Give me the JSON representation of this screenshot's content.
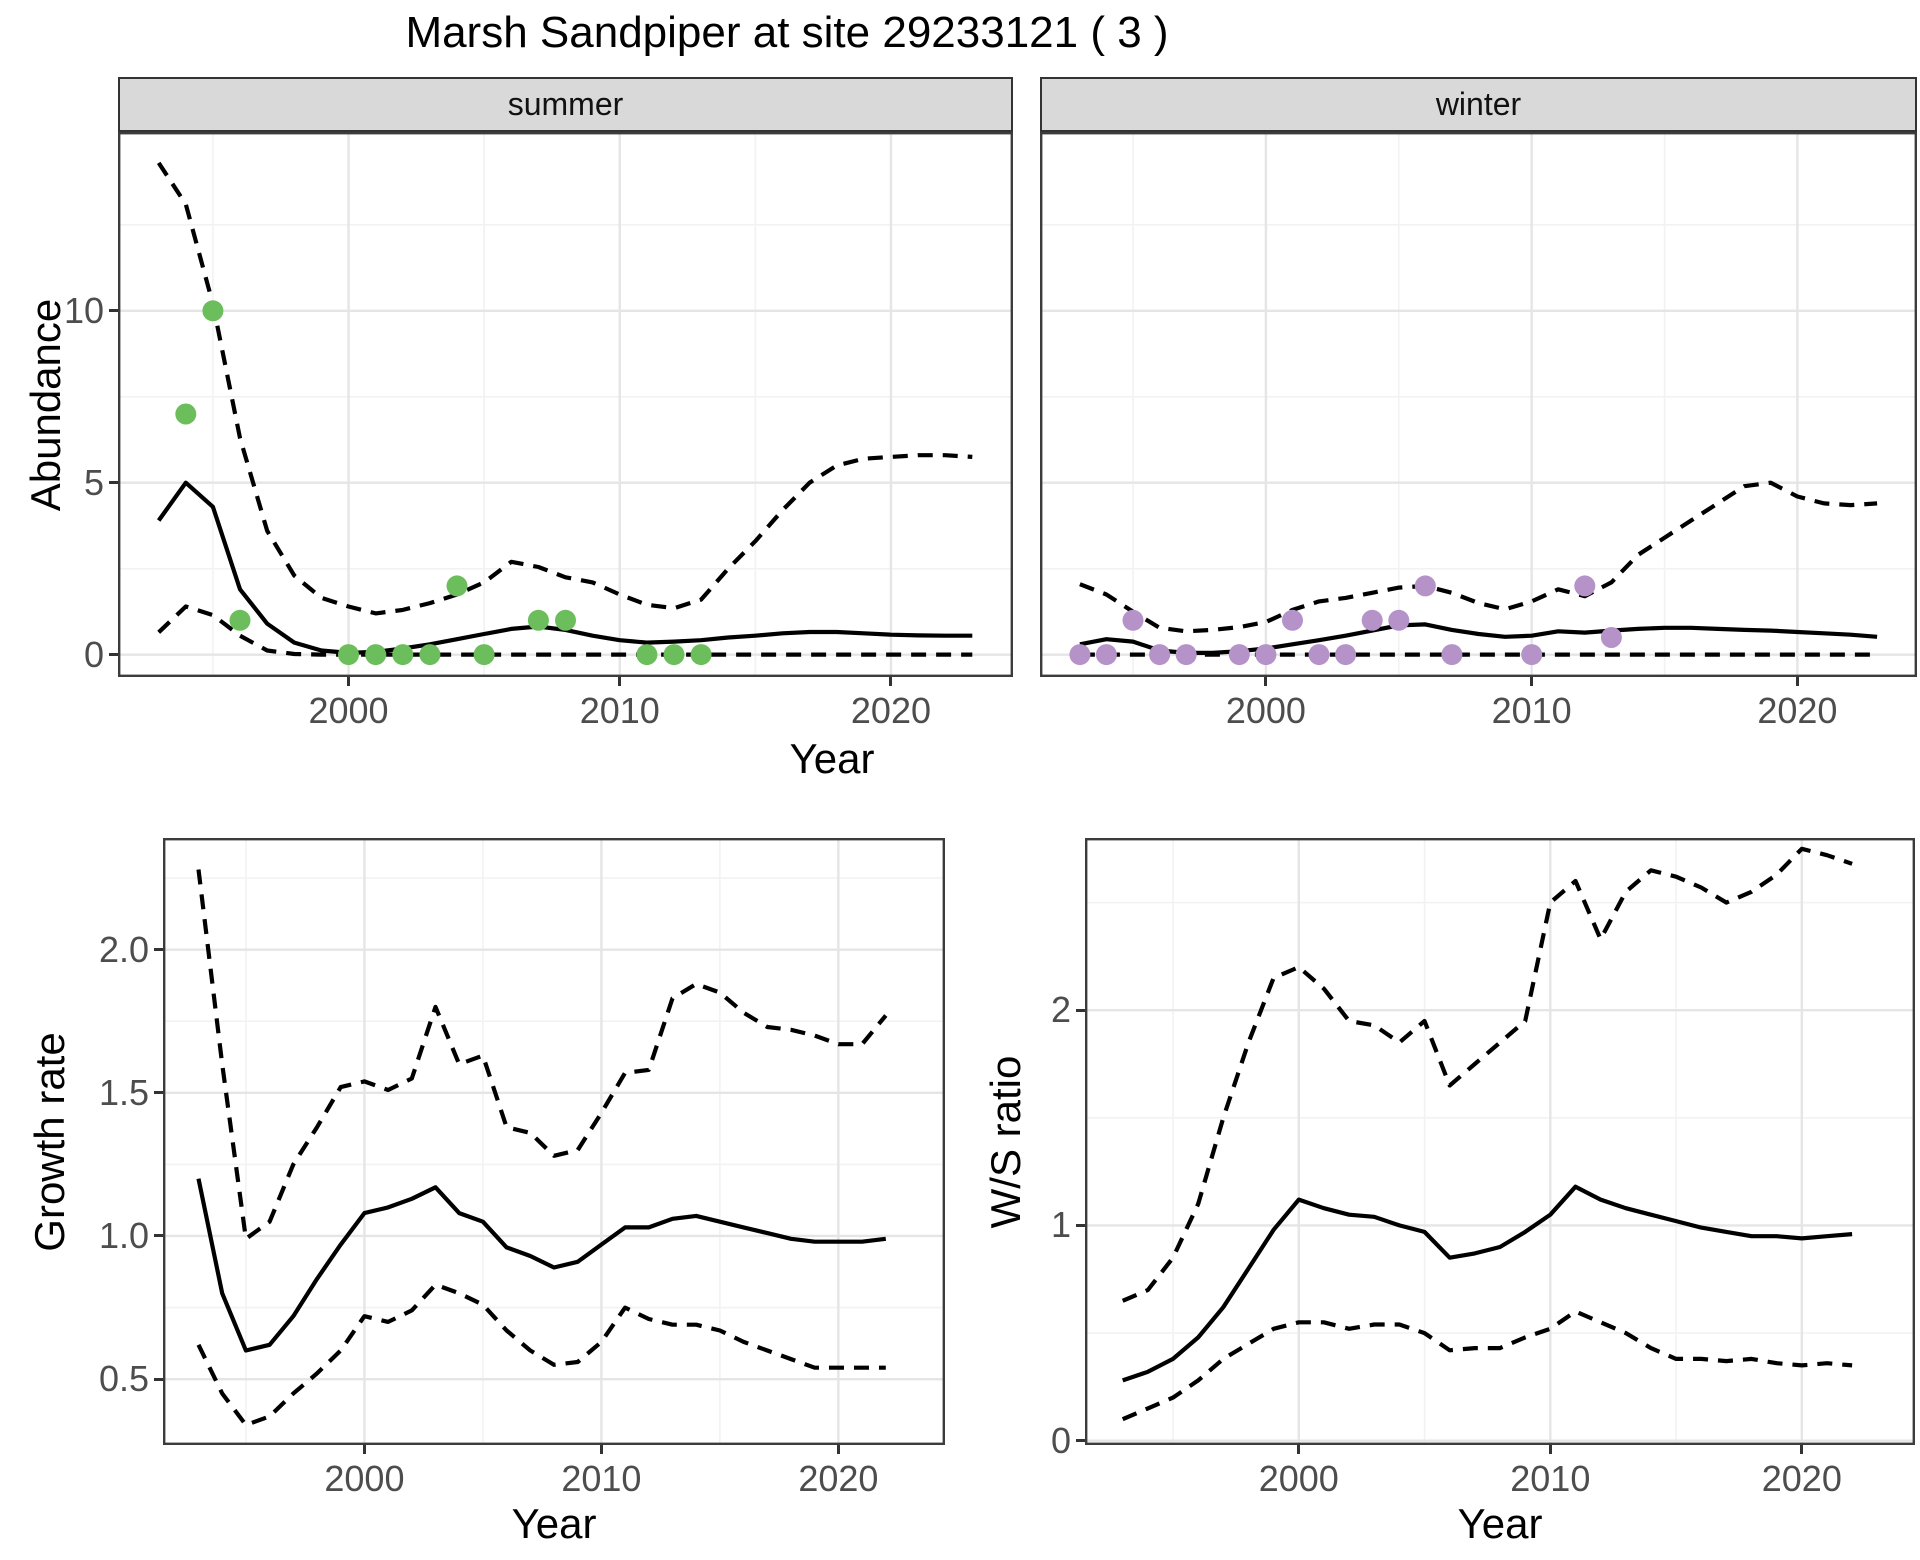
{
  "title": "Marsh Sandpiper at site 29233121 ( 3 )",
  "facets": {
    "summer": "summer",
    "winter": "winter"
  },
  "axes": {
    "abundance_label": "Abundance",
    "year_top_label": "Year",
    "growth_label": "Growth rate",
    "year_growth_label": "Year",
    "ws_label": "W/S ratio",
    "year_ws_label": "Year"
  },
  "colors": {
    "summer_points": "#6CBE5C",
    "winter_points": "#B592C8",
    "line": "#000000",
    "grid_major": "#e5e5e5",
    "grid_minor": "#f2f2f2",
    "panel_border": "#3c3c3c",
    "strip_bg": "#d9d9d9",
    "tick_text": "#4d4d4d"
  },
  "chart_data": [
    {
      "id": "abundance-summer",
      "type": "line",
      "title": "summer",
      "xlabel": "Year",
      "ylabel": "Abundance",
      "xlim": [
        1991.5,
        2024.5
      ],
      "ylim": [
        -0.65,
        15.2
      ],
      "xticks": [
        2000,
        2010,
        2020
      ],
      "xminor": [
        1995,
        2005,
        2015
      ],
      "yticks": [
        {
          "v": 0,
          "label": "0"
        },
        {
          "v": 5,
          "label": "5"
        },
        {
          "v": 10,
          "label": "10"
        }
      ],
      "yminor": [
        2.5,
        7.5,
        12.5
      ],
      "x": [
        1993,
        1994,
        1995,
        1996,
        1997,
        1998,
        1999,
        2000,
        2001,
        2002,
        2003,
        2004,
        2005,
        2006,
        2007,
        2008,
        2009,
        2010,
        2011,
        2012,
        2013,
        2014,
        2015,
        2016,
        2017,
        2018,
        2019,
        2020,
        2021,
        2022,
        2023
      ],
      "series": [
        {
          "name": "fit",
          "style": "solid",
          "values": [
            3.9,
            5.0,
            4.3,
            1.9,
            0.9,
            0.35,
            0.12,
            0.05,
            0.08,
            0.18,
            0.3,
            0.45,
            0.6,
            0.75,
            0.82,
            0.72,
            0.55,
            0.42,
            0.35,
            0.38,
            0.42,
            0.5,
            0.55,
            0.62,
            0.66,
            0.66,
            0.62,
            0.58,
            0.56,
            0.55,
            0.55
          ]
        },
        {
          "name": "upper_ci",
          "style": "dashed",
          "values": [
            14.3,
            13.1,
            10.2,
            6.3,
            3.6,
            2.3,
            1.65,
            1.4,
            1.2,
            1.3,
            1.5,
            1.75,
            2.1,
            2.7,
            2.55,
            2.25,
            2.1,
            1.75,
            1.45,
            1.35,
            1.6,
            2.5,
            3.3,
            4.2,
            5.0,
            5.5,
            5.7,
            5.75,
            5.8,
            5.8,
            5.75
          ]
        },
        {
          "name": "lower_ci",
          "style": "dashed",
          "values": [
            0.65,
            1.4,
            1.15,
            0.55,
            0.12,
            0.02,
            0,
            0,
            0,
            0,
            0,
            0,
            0,
            0,
            0,
            0,
            0,
            0,
            0,
            0,
            0,
            0,
            0,
            0,
            0,
            0,
            0,
            0,
            0,
            0,
            0
          ]
        }
      ],
      "points": {
        "name": "observed-counts-summer",
        "color": "#6CBE5C",
        "data": [
          [
            1994,
            7
          ],
          [
            1995,
            10
          ],
          [
            1996,
            1
          ],
          [
            2000,
            0
          ],
          [
            2001,
            0
          ],
          [
            2002,
            0
          ],
          [
            2003,
            0
          ],
          [
            2004,
            2
          ],
          [
            2005,
            0
          ],
          [
            2007,
            1
          ],
          [
            2008,
            1
          ],
          [
            2011,
            0
          ],
          [
            2012,
            0
          ],
          [
            2013,
            0
          ]
        ]
      }
    },
    {
      "id": "abundance-winter",
      "type": "line",
      "title": "winter",
      "xlabel": "Year",
      "ylabel": "Abundance",
      "xlim": [
        1991.5,
        2024.5
      ],
      "ylim": [
        -0.65,
        15.2
      ],
      "xticks": [
        2000,
        2010,
        2020
      ],
      "xminor": [
        1995,
        2005,
        2015
      ],
      "yticks": [
        {
          "v": 0,
          "label": "0"
        },
        {
          "v": 5,
          "label": "5"
        },
        {
          "v": 10,
          "label": "10"
        }
      ],
      "yminor": [
        2.5,
        7.5,
        12.5
      ],
      "x": [
        1993,
        1994,
        1995,
        1996,
        1997,
        1998,
        1999,
        2000,
        2001,
        2002,
        2003,
        2004,
        2005,
        2006,
        2007,
        2008,
        2009,
        2010,
        2011,
        2012,
        2013,
        2014,
        2015,
        2016,
        2017,
        2018,
        2019,
        2020,
        2021,
        2022,
        2023
      ],
      "series": [
        {
          "name": "fit",
          "style": "solid",
          "values": [
            0.3,
            0.45,
            0.38,
            0.12,
            0.05,
            0.05,
            0.1,
            0.18,
            0.3,
            0.42,
            0.55,
            0.7,
            0.85,
            0.88,
            0.72,
            0.6,
            0.52,
            0.55,
            0.68,
            0.64,
            0.7,
            0.75,
            0.78,
            0.78,
            0.75,
            0.72,
            0.7,
            0.66,
            0.62,
            0.58,
            0.52
          ]
        },
        {
          "name": "upper_ci",
          "style": "dashed",
          "values": [
            2.05,
            1.75,
            1.25,
            0.78,
            0.68,
            0.72,
            0.8,
            0.95,
            1.3,
            1.55,
            1.65,
            1.8,
            1.95,
            2.0,
            1.8,
            1.5,
            1.32,
            1.55,
            1.9,
            1.7,
            2.1,
            2.9,
            3.4,
            3.9,
            4.4,
            4.9,
            5.0,
            4.6,
            4.4,
            4.35,
            4.4
          ]
        },
        {
          "name": "lower_ci",
          "style": "dashed",
          "values": [
            0,
            0,
            0,
            0,
            0,
            0,
            0,
            0,
            0,
            0,
            0,
            0,
            0,
            0,
            0,
            0,
            0,
            0,
            0,
            0,
            0,
            0,
            0,
            0,
            0,
            0,
            0,
            0,
            0,
            0,
            0
          ]
        }
      ],
      "points": {
        "name": "observed-counts-winter",
        "color": "#B592C8",
        "data": [
          [
            1993,
            0
          ],
          [
            1994,
            0
          ],
          [
            1995,
            1
          ],
          [
            1996,
            0
          ],
          [
            1997,
            0
          ],
          [
            1999,
            0
          ],
          [
            2000,
            0
          ],
          [
            2001,
            1
          ],
          [
            2002,
            0
          ],
          [
            2003,
            0
          ],
          [
            2004,
            1
          ],
          [
            2005,
            1
          ],
          [
            2006,
            2
          ],
          [
            2007,
            0
          ],
          [
            2010,
            0
          ],
          [
            2012,
            2
          ],
          [
            2013,
            0.5
          ]
        ]
      }
    },
    {
      "id": "growth-rate",
      "type": "line",
      "title": "",
      "xlabel": "Year",
      "ylabel": "Growth rate",
      "xlim": [
        1991.5,
        2024.5
      ],
      "ylim": [
        0.27,
        2.39
      ],
      "xticks": [
        2000,
        2010,
        2020
      ],
      "xminor": [
        1995,
        2005,
        2015
      ],
      "yticks": [
        {
          "v": 0.5,
          "label": "0.5"
        },
        {
          "v": 1.0,
          "label": "1.0"
        },
        {
          "v": 1.5,
          "label": "1.5"
        },
        {
          "v": 2.0,
          "label": "2.0"
        }
      ],
      "yminor": [
        0.75,
        1.25,
        1.75,
        2.25
      ],
      "x": [
        1993,
        1994,
        1995,
        1996,
        1997,
        1998,
        1999,
        2000,
        2001,
        2002,
        2003,
        2004,
        2005,
        2006,
        2007,
        2008,
        2009,
        2010,
        2011,
        2012,
        2013,
        2014,
        2015,
        2016,
        2017,
        2018,
        2019,
        2020,
        2021,
        2022
      ],
      "series": [
        {
          "name": "fit",
          "style": "solid",
          "values": [
            1.2,
            0.8,
            0.6,
            0.62,
            0.72,
            0.85,
            0.97,
            1.08,
            1.1,
            1.13,
            1.17,
            1.08,
            1.05,
            0.96,
            0.93,
            0.89,
            0.91,
            0.97,
            1.03,
            1.03,
            1.06,
            1.07,
            1.05,
            1.03,
            1.01,
            0.99,
            0.98,
            0.98,
            0.98,
            0.99
          ]
        },
        {
          "name": "upper_ci",
          "style": "dashed",
          "values": [
            2.28,
            1.6,
            0.99,
            1.05,
            1.25,
            1.38,
            1.52,
            1.54,
            1.51,
            1.55,
            1.8,
            1.6,
            1.63,
            1.38,
            1.36,
            1.28,
            1.3,
            1.43,
            1.57,
            1.58,
            1.83,
            1.88,
            1.85,
            1.78,
            1.73,
            1.72,
            1.7,
            1.67,
            1.67,
            1.77
          ]
        },
        {
          "name": "lower_ci",
          "style": "dashed",
          "values": [
            0.62,
            0.45,
            0.34,
            0.37,
            0.45,
            0.52,
            0.6,
            0.72,
            0.7,
            0.74,
            0.83,
            0.8,
            0.76,
            0.67,
            0.6,
            0.55,
            0.56,
            0.63,
            0.75,
            0.71,
            0.69,
            0.69,
            0.67,
            0.63,
            0.6,
            0.57,
            0.54,
            0.54,
            0.54,
            0.54
          ]
        }
      ]
    },
    {
      "id": "ws-ratio",
      "type": "line",
      "title": "",
      "xlabel": "Year",
      "ylabel": "W/S ratio",
      "xlim": [
        1991.5,
        2024.5
      ],
      "ylim": [
        -0.02,
        2.8
      ],
      "xticks": [
        2000,
        2010,
        2020
      ],
      "xminor": [
        1995,
        2005,
        2015
      ],
      "yticks": [
        {
          "v": 0,
          "label": "0"
        },
        {
          "v": 1,
          "label": "1"
        },
        {
          "v": 2,
          "label": "2"
        }
      ],
      "yminor": [
        0.5,
        1.5,
        2.5
      ],
      "x": [
        1993,
        1994,
        1995,
        1996,
        1997,
        1998,
        1999,
        2000,
        2001,
        2002,
        2003,
        2004,
        2005,
        2006,
        2007,
        2008,
        2009,
        2010,
        2011,
        2012,
        2013,
        2014,
        2015,
        2016,
        2017,
        2018,
        2019,
        2020,
        2021,
        2022
      ],
      "series": [
        {
          "name": "fit",
          "style": "solid",
          "values": [
            0.28,
            0.32,
            0.38,
            0.48,
            0.62,
            0.8,
            0.98,
            1.12,
            1.08,
            1.05,
            1.04,
            1.0,
            0.97,
            0.85,
            0.87,
            0.9,
            0.97,
            1.05,
            1.18,
            1.12,
            1.08,
            1.05,
            1.02,
            0.99,
            0.97,
            0.95,
            0.95,
            0.94,
            0.95,
            0.96
          ]
        },
        {
          "name": "upper_ci",
          "style": "dashed",
          "values": [
            0.65,
            0.7,
            0.85,
            1.1,
            1.5,
            1.85,
            2.15,
            2.2,
            2.1,
            1.95,
            1.93,
            1.85,
            1.95,
            1.65,
            1.75,
            1.85,
            1.95,
            2.5,
            2.6,
            2.33,
            2.55,
            2.65,
            2.62,
            2.57,
            2.5,
            2.55,
            2.63,
            2.75,
            2.72,
            2.68
          ]
        },
        {
          "name": "lower_ci",
          "style": "dashed",
          "values": [
            0.1,
            0.15,
            0.2,
            0.28,
            0.38,
            0.45,
            0.52,
            0.55,
            0.55,
            0.52,
            0.54,
            0.54,
            0.5,
            0.42,
            0.43,
            0.43,
            0.48,
            0.52,
            0.6,
            0.55,
            0.5,
            0.43,
            0.38,
            0.38,
            0.37,
            0.38,
            0.36,
            0.35,
            0.36,
            0.35
          ]
        }
      ]
    }
  ]
}
